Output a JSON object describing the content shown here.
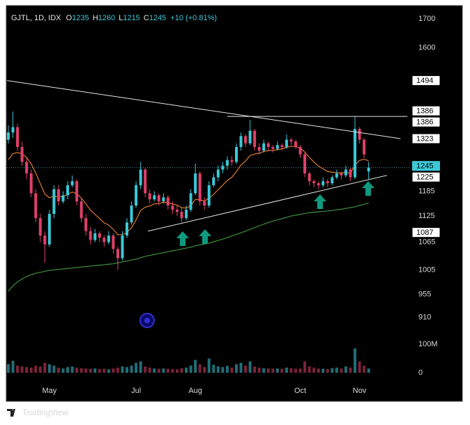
{
  "chart_data": {
    "type": "candlestick",
    "symbol": "GJTL, 1D, IDX",
    "ohlc_labels": [
      "O",
      "H",
      "L",
      "C"
    ],
    "change_label": "+10 (+0.81%)",
    "brand": "TradingView",
    "log": true,
    "up_color": "#3cc8d8",
    "down_color": "#e0406a",
    "ylim": [
      878,
      1748
    ],
    "yticks": [
      1700,
      1600,
      1185,
      1125,
      1065,
      1005,
      955,
      910
    ],
    "categories": [
      null,
      null,
      null,
      null,
      null,
      null,
      null,
      null,
      null,
      "May",
      null,
      null,
      null,
      null,
      null,
      null,
      null,
      null,
      null,
      null,
      null,
      null,
      null,
      null,
      null,
      null,
      null,
      null,
      "Jul",
      null,
      null,
      null,
      null,
      null,
      null,
      null,
      null,
      null,
      null,
      null,
      null,
      "Aug",
      null,
      null,
      null,
      null,
      null,
      null,
      null,
      null,
      null,
      null,
      null,
      null,
      null,
      null,
      null,
      null,
      null,
      null,
      null,
      null,
      null,
      null,
      "Oct",
      null,
      null,
      null,
      null,
      null,
      null,
      null,
      null,
      null,
      null,
      null,
      null,
      "Nov",
      null,
      null
    ],
    "open": [
      1320,
      1340,
      1355,
      1300,
      1260,
      1230,
      1180,
      1120,
      1080,
      1060,
      1130,
      1190,
      1160,
      1175,
      1200,
      1210,
      1160,
      1120,
      1090,
      1070,
      1085,
      1075,
      1065,
      1080,
      1050,
      1030,
      1080,
      1110,
      1150,
      1200,
      1240,
      1180,
      1165,
      1175,
      1160,
      1170,
      1150,
      1140,
      1135,
      1120,
      1140,
      1180,
      1230,
      1160,
      1150,
      1200,
      1220,
      1240,
      1250,
      1265,
      1260,
      1300,
      1330,
      1310,
      1345,
      1300,
      1290,
      1310,
      1300,
      1295,
      1305,
      1300,
      1320,
      1315,
      1300,
      1280,
      1230,
      1210,
      1205,
      1200,
      1210,
      1205,
      1220,
      1230,
      1225,
      1240,
      1220,
      1350,
      1320,
      1235
    ],
    "high": [
      1360,
      1400,
      1365,
      1315,
      1270,
      1240,
      1190,
      1130,
      1090,
      1140,
      1200,
      1200,
      1185,
      1210,
      1225,
      1215,
      1170,
      1130,
      1100,
      1095,
      1090,
      1080,
      1090,
      1085,
      1055,
      1090,
      1120,
      1160,
      1210,
      1260,
      1245,
      1190,
      1185,
      1180,
      1180,
      1175,
      1160,
      1150,
      1145,
      1150,
      1190,
      1255,
      1235,
      1170,
      1210,
      1230,
      1250,
      1260,
      1275,
      1275,
      1310,
      1340,
      1335,
      1375,
      1350,
      1310,
      1320,
      1315,
      1305,
      1315,
      1310,
      1335,
      1325,
      1320,
      1305,
      1285,
      1235,
      1215,
      1210,
      1220,
      1215,
      1225,
      1240,
      1235,
      1250,
      1245,
      1385,
      1355,
      1325,
      1260
    ],
    "low": [
      1310,
      1325,
      1290,
      1250,
      1215,
      1170,
      1110,
      1065,
      1020,
      1055,
      1120,
      1150,
      1155,
      1165,
      1195,
      1150,
      1110,
      1080,
      1060,
      1065,
      1065,
      1055,
      1060,
      1040,
      1005,
      1025,
      1075,
      1105,
      1145,
      1190,
      1170,
      1155,
      1160,
      1150,
      1155,
      1140,
      1130,
      1125,
      1110,
      1115,
      1135,
      1175,
      1150,
      1140,
      1145,
      1195,
      1210,
      1230,
      1240,
      1250,
      1255,
      1290,
      1300,
      1305,
      1290,
      1280,
      1285,
      1290,
      1285,
      1290,
      1290,
      1295,
      1305,
      1295,
      1270,
      1220,
      1200,
      1195,
      1190,
      1195,
      1195,
      1200,
      1215,
      1215,
      1220,
      1210,
      1215,
      1310,
      1270,
      1215
    ],
    "close": [
      1340,
      1355,
      1300,
      1260,
      1230,
      1180,
      1120,
      1080,
      1060,
      1130,
      1190,
      1160,
      1175,
      1200,
      1210,
      1160,
      1120,
      1090,
      1070,
      1085,
      1075,
      1065,
      1080,
      1050,
      1030,
      1080,
      1110,
      1150,
      1200,
      1240,
      1180,
      1165,
      1175,
      1160,
      1170,
      1150,
      1140,
      1135,
      1120,
      1140,
      1180,
      1230,
      1160,
      1150,
      1200,
      1220,
      1240,
      1250,
      1265,
      1260,
      1300,
      1330,
      1310,
      1345,
      1300,
      1290,
      1310,
      1300,
      1295,
      1305,
      1300,
      1320,
      1315,
      1300,
      1280,
      1230,
      1210,
      1205,
      1200,
      1210,
      1205,
      1220,
      1230,
      1225,
      1240,
      1220,
      1350,
      1320,
      1280,
      1245
    ],
    "lines": [
      {
        "color": "#e07a2e",
        "values": [
          1266,
          1282,
          1285,
          1281,
          1272,
          1255,
          1231,
          1204,
          1178,
          1169,
          1173,
          1171,
          1172,
          1177,
          1183,
          1179,
          1168,
          1154,
          1139,
          1129,
          1119,
          1109,
          1104,
          1094,
          1082,
          1082,
          1087,
          1098,
          1116,
          1138,
          1146,
          1149,
          1154,
          1155,
          1158,
          1157,
          1154,
          1151,
          1145,
          1144,
          1150,
          1165,
          1164,
          1161,
          1168,
          1177,
          1189,
          1200,
          1212,
          1220,
          1235,
          1252,
          1262,
          1277,
          1281,
          1283,
          1288,
          1290,
          1291,
          1293,
          1295,
          1299,
          1302,
          1301,
          1298,
          1286,
          1272,
          1260,
          1249,
          1242,
          1235,
          1233,
          1232,
          1231,
          1233,
          1230,
          1252,
          1264,
          1267,
          1263
        ]
      },
      {
        "color": "#3f8f3f",
        "values": [
          961,
          972,
          980,
          986,
          991,
          995,
          998,
          1000,
          1002,
          1004,
          1005,
          1006,
          1007,
          1008,
          1009,
          1010,
          1011,
          1012,
          1013,
          1014,
          1015,
          1016,
          1017,
          1018,
          1020,
          1022,
          1024,
          1026,
          1028,
          1031,
          1034,
          1036,
          1038,
          1040,
          1042,
          1044,
          1046,
          1048,
          1050,
          1052,
          1054,
          1057,
          1059,
          1061,
          1063,
          1066,
          1069,
          1072,
          1075,
          1079,
          1083,
          1086,
          1090,
          1094,
          1098,
          1102,
          1106,
          1110,
          1113,
          1116,
          1119,
          1122,
          1125,
          1127,
          1129,
          1131,
          1133,
          1134,
          1135,
          1136,
          1137,
          1138,
          1140,
          1141,
          1143,
          1145,
          1147,
          1150,
          1153,
          1156
        ]
      }
    ],
    "trendlines": [
      {
        "color": "#e6e6e6",
        "points": [
          [
            -0.3,
            1494
          ],
          [
            86,
            1323
          ]
        ]
      },
      {
        "color": "#e6e6e6",
        "points": [
          [
            48,
            1386
          ],
          [
            87.5,
            1386
          ]
        ]
      },
      {
        "color": "#e6e6e6",
        "points": [
          [
            30.6,
            1090
          ],
          [
            83,
            1225
          ]
        ]
      }
    ],
    "price_labels": [
      {
        "value": 1494,
        "style": "box"
      },
      {
        "value": 1386,
        "style": "box"
      },
      {
        "value": 1386,
        "style": "box"
      },
      {
        "value": 1323,
        "style": "box"
      },
      {
        "value": 1245,
        "style": "last"
      },
      {
        "value": 1225,
        "style": "box"
      },
      {
        "value": 1087,
        "style": "box"
      }
    ],
    "last_price": 1245,
    "volume": [
      30,
      42,
      25,
      22,
      20,
      18,
      25,
      22,
      35,
      30,
      25,
      18,
      15,
      20,
      22,
      18,
      16,
      15,
      14,
      15,
      13,
      14,
      12,
      15,
      18,
      22,
      20,
      25,
      35,
      40,
      22,
      18,
      15,
      14,
      15,
      14,
      13,
      12,
      16,
      18,
      25,
      45,
      30,
      20,
      50,
      28,
      22,
      20,
      24,
      18,
      30,
      35,
      25,
      40,
      22,
      18,
      16,
      15,
      14,
      15,
      14,
      18,
      16,
      14,
      15,
      40,
      22,
      18,
      15,
      14,
      13,
      16,
      18,
      15,
      22,
      18,
      85,
      40,
      25,
      15
    ],
    "volume_lim": [
      0,
      100
    ],
    "volume_ticks": [
      0,
      {
        "value": 100,
        "label": "100M"
      }
    ]
  }
}
